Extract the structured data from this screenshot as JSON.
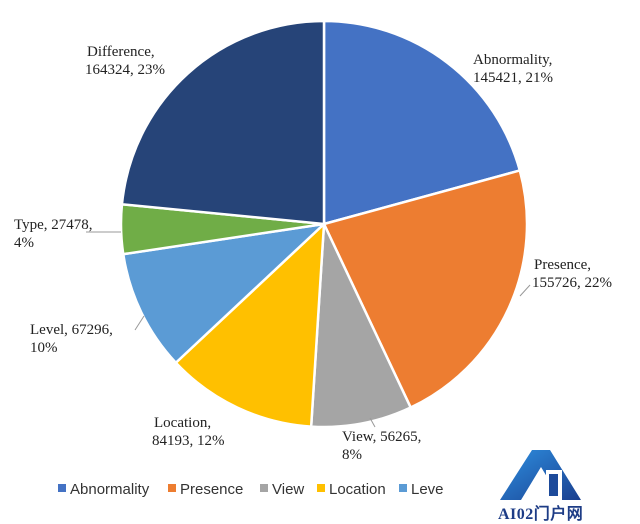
{
  "chart_data": {
    "type": "pie",
    "title": "",
    "slices": [
      {
        "label": "Abnormality",
        "value": 145421,
        "percent": "21%",
        "color": "#4472C4",
        "text_lines": [
          "Abnormality,",
          "145421, 21%"
        ]
      },
      {
        "label": "Presence",
        "value": 155726,
        "percent": "22%",
        "color": "#ED7D31",
        "text_lines": [
          "Presence,",
          "155726, 22%"
        ]
      },
      {
        "label": "View",
        "value": 56265,
        "percent": "8%",
        "color": "#A5A5A5",
        "text_lines": [
          "View, 56265,",
          "8%"
        ]
      },
      {
        "label": "Location",
        "value": 84193,
        "percent": "12%",
        "color": "#FFC000",
        "text_lines": [
          "Location,",
          "84193, 12%"
        ]
      },
      {
        "label": "Level",
        "value": 67296,
        "percent": "10%",
        "color": "#5B9BD5",
        "text_lines": [
          "Level, 67296,",
          "10%"
        ]
      },
      {
        "label": "Type",
        "value": 27478,
        "percent": "4%",
        "color": "#70AD47",
        "text_lines": [
          "Type, 27478,",
          "4%"
        ]
      },
      {
        "label": "Difference",
        "value": 164324,
        "percent": "23%",
        "color": "#264478",
        "text_lines": [
          "Difference,",
          "164324, 23%"
        ]
      }
    ],
    "legend": {
      "placement": "bottom",
      "entries": [
        "Abnormality",
        "Presence",
        "View",
        "Location",
        "Leve"
      ]
    }
  },
  "watermark": {
    "text": "AI02门户网",
    "color": "#1d3c86"
  }
}
